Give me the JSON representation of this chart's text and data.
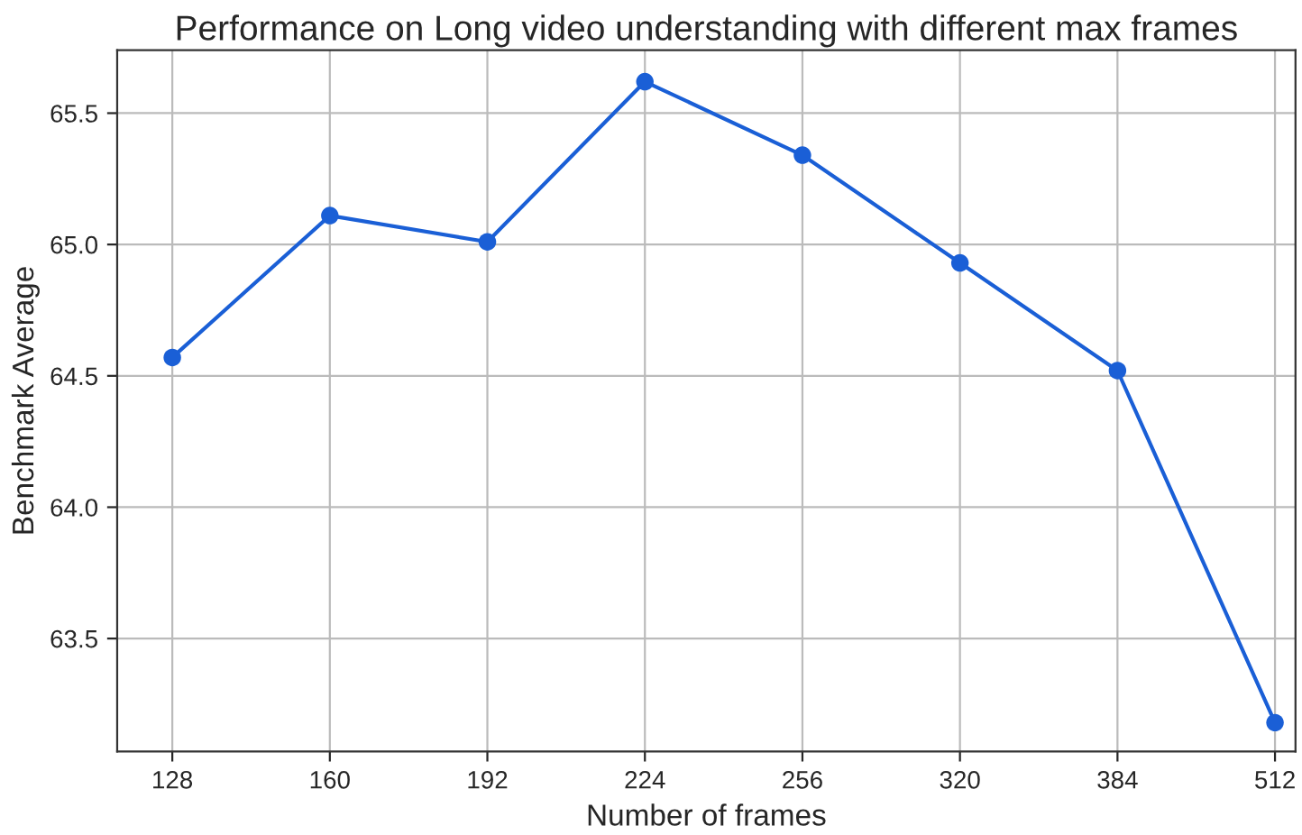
{
  "chart_data": {
    "type": "line",
    "title": "Performance on Long video understanding with different max frames",
    "xlabel": "Number of frames",
    "ylabel": "Benchmark Average",
    "categories": [
      "128",
      "160",
      "192",
      "224",
      "256",
      "320",
      "384",
      "512"
    ],
    "series": [
      {
        "color": "#1a5fd6",
        "values": [
          64.57,
          65.11,
          65.01,
          65.62,
          65.34,
          64.93,
          64.52,
          63.18
        ]
      }
    ],
    "ylim": [
      63.07,
      65.74
    ],
    "yticks": [
      {
        "value": 63.5,
        "label": "63.5"
      },
      {
        "value": 64.0,
        "label": "64.0"
      },
      {
        "value": 64.5,
        "label": "64.5"
      },
      {
        "value": 65.0,
        "label": "65.0"
      },
      {
        "value": 65.5,
        "label": "65.5"
      }
    ],
    "grid": true,
    "marker": "circle",
    "line_style": "solid"
  }
}
